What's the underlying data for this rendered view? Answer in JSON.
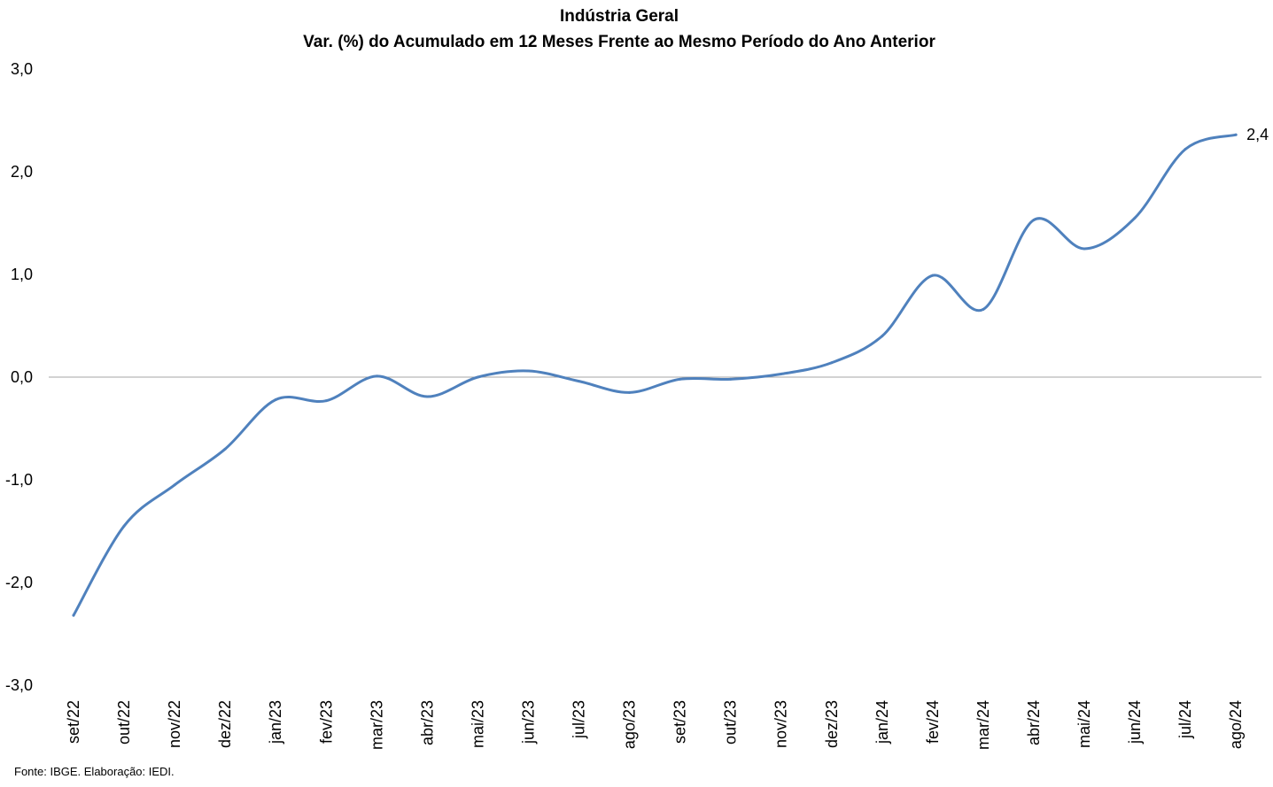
{
  "chart_data": {
    "type": "line",
    "title": "Indústria Geral",
    "subtitle": "Var. (%) do Acumulado em 12 Meses Frente ao Mesmo Período do Ano Anterior",
    "xlabel": "",
    "ylabel": "",
    "ylim": [
      -3,
      3
    ],
    "yticks": [
      3,
      2,
      1,
      0,
      -1,
      -2,
      -3
    ],
    "ytick_labels": [
      "3,0",
      "2,0",
      "1,0",
      "0,0",
      "-1,0",
      "-2,0",
      "-3,0"
    ],
    "categories": [
      "set/22",
      "out/22",
      "nov/22",
      "dez/22",
      "jan/23",
      "fev/23",
      "mar/23",
      "abr/23",
      "mai/23",
      "jun/23",
      "jul/23",
      "ago/23",
      "set/23",
      "out/23",
      "nov/23",
      "dez/23",
      "jan/24",
      "fev/24",
      "mar/24",
      "abr/24",
      "mai/24",
      "jun/24",
      "jul/24",
      "ago/24"
    ],
    "series": [
      {
        "values": [
          -2.32,
          -1.45,
          -1.05,
          -0.7,
          -0.22,
          -0.23,
          0.01,
          -0.19,
          0.0,
          0.06,
          -0.04,
          -0.15,
          -0.02,
          -0.02,
          0.03,
          0.14,
          0.4,
          0.99,
          0.66,
          1.53,
          1.25,
          1.55,
          2.22,
          2.36
        ],
        "color": "#4F81BD"
      }
    ],
    "data_labels": [
      {
        "index": 23,
        "text": "2,4"
      }
    ],
    "grid": false,
    "legend": "none",
    "zero_line_color": "#A6A6A6"
  },
  "source": "Fonte: IBGE. Elaboração: IEDI."
}
